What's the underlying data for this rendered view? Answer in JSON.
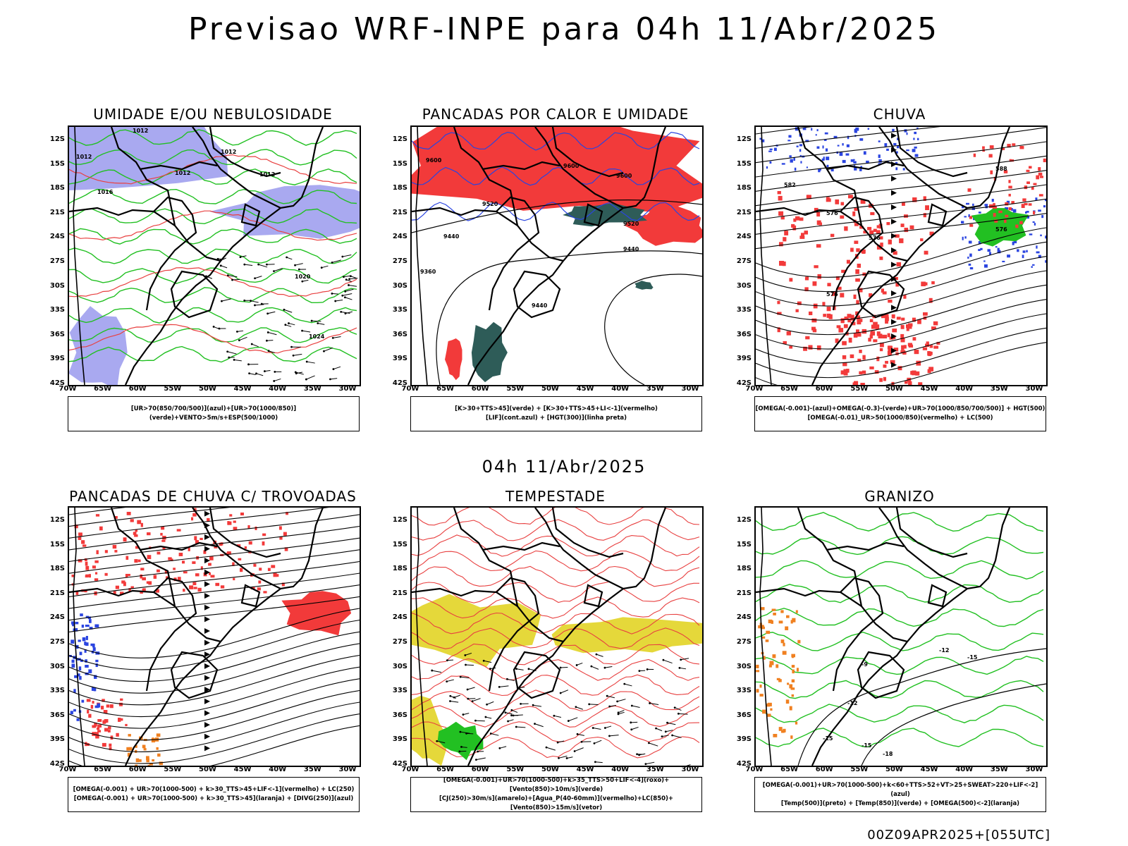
{
  "title": "Previsao WRF-INPE  para 04h 11/Abr/2025",
  "mid_title": "04h 11/Abr/2025",
  "footer": "00Z09APR2025+[055UTC]",
  "lat_labels": [
    "12S",
    "15S",
    "18S",
    "21S",
    "24S",
    "27S",
    "30S",
    "33S",
    "36S",
    "39S",
    "42S"
  ],
  "lon_labels": [
    "70W",
    "65W",
    "60W",
    "55W",
    "50W",
    "45W",
    "40W",
    "35W",
    "30W"
  ],
  "colors": {
    "blue_fill": "#a9a9f0",
    "red_fill": "#f23a3a",
    "dark_teal": "#2e5c58",
    "yellow_fill": "#e5d83a",
    "green_line": "#22c022",
    "blue_line": "#2a44e0",
    "red_line": "#e84040",
    "orange": "#f08020"
  },
  "panels": [
    {
      "id": "umidade",
      "title": "UMIDADE E/OU NEBULOSIDADE",
      "legend": [
        "[UR>70(850/700/500)](azul)+[UR>70(1000/850)](verde)+VENTO>5m/s+ESP(500/1000)"
      ],
      "contour_labels": [
        "1012",
        "1012",
        "1012",
        "1012",
        "1012",
        "1016",
        "1020",
        "1024"
      ]
    },
    {
      "id": "pancadas-calor",
      "title": "PANCADAS POR CALOR E UMIDADE",
      "legend": [
        "[K>30+TTS>45](verde)  +  [K>30+TTS>45+LI<-1](vermelho)",
        "[LIF](cont.azul)  +  [HGT(300)](linha preta)"
      ],
      "contour_labels": [
        "9600",
        "9600",
        "9600",
        "9520",
        "9520",
        "9440",
        "9440",
        "9440",
        "9360"
      ]
    },
    {
      "id": "chuva",
      "title": "CHUVA",
      "legend": [
        "[OMEGA(-0.001)-(azul)+OMEGA(-0.3)-(verde)+UR>70(1000/850/700/500)]  +  HGT(500)",
        "[OMEGA(-0.01)_UR>50(1000/850)(vermelho)  +  LC(500)"
      ],
      "contour_labels": [
        "588",
        "582",
        "576",
        "576",
        "576",
        "576"
      ]
    },
    {
      "id": "pancadas-trovoadas",
      "title": "PANCADAS DE CHUVA C/ TROVOADAS",
      "legend": [
        "[OMEGA(-0.001)  +  UR>70(1000-500)  +  k>30_TTS>45+LIF<-1](vermelho)  +  LC(250)",
        "[OMEGA(-0.001)  +  UR>70(1000-500)  +  k>30_TTS>45](laranja)  +  [DIVG(250)](azul)"
      ],
      "contour_labels": []
    },
    {
      "id": "tempestade",
      "title": "TEMPESTADE",
      "legend": [
        "[OMEGA(-0.001)+UR>70(1000-500)+k>35_TTS>50+LIF<-4](roxo)+[Vento(850)>10m/s](verde)",
        "[CJ(250)>30m/s](amarelo)+[Agua_P(40-60mm)](vermelho)+LC(850)+[Vento(850)>15m/s](vetor)"
      ],
      "contour_labels": []
    },
    {
      "id": "granizo",
      "title": "GRANIZO",
      "legend": [
        "[OMEGA(-0.001)+UR>70(1000-500)+k<60+TTS>52+VT>25+SWEAT>220+LIF<-2](azul)",
        "[Temp(500)](preto)  +  [Temp(850)](verde)  +  [OMEGA(500)<-2](laranja)"
      ],
      "contour_labels": [
        "-12",
        "-15",
        "-15",
        "-12",
        "-15",
        "-18",
        "-9"
      ]
    }
  ]
}
